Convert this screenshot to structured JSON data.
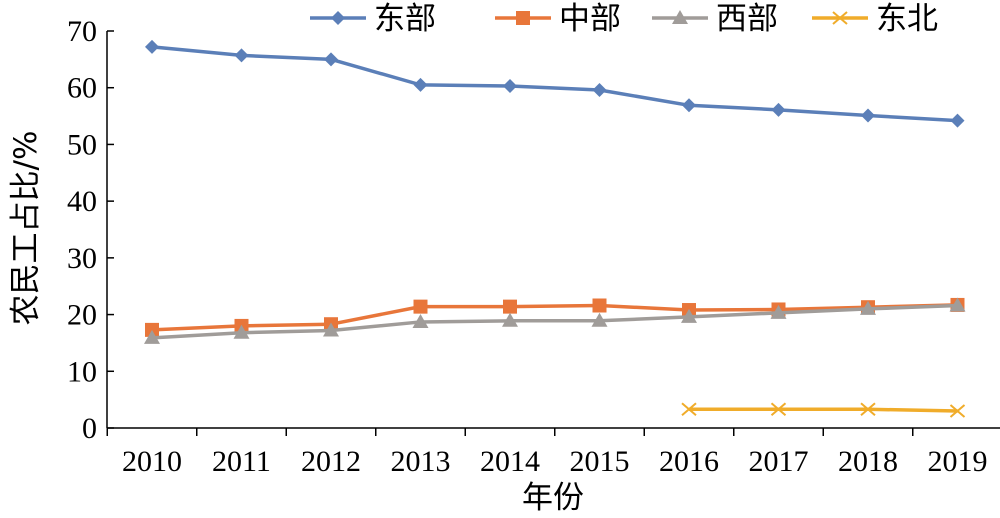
{
  "chart_data": {
    "type": "line",
    "categories": [
      "2010",
      "2011",
      "2012",
      "2013",
      "2014",
      "2015",
      "2016",
      "2017",
      "2018",
      "2019"
    ],
    "series": [
      {
        "name": "东部",
        "color": "#5b7fb8",
        "marker": "diamond",
        "values": [
          67.2,
          65.7,
          65.0,
          60.5,
          60.3,
          59.6,
          56.9,
          56.1,
          55.1,
          54.2
        ]
      },
      {
        "name": "中部",
        "color": "#e8763a",
        "marker": "square",
        "values": [
          17.3,
          18.0,
          18.3,
          21.4,
          21.4,
          21.6,
          20.8,
          20.9,
          21.3,
          21.7
        ]
      },
      {
        "name": "西部",
        "color": "#a09c99",
        "marker": "triangle",
        "values": [
          15.9,
          16.8,
          17.2,
          18.7,
          18.9,
          18.9,
          19.6,
          20.3,
          21.0,
          21.6
        ]
      },
      {
        "name": "东北",
        "color": "#f0ac2a",
        "marker": "x",
        "values": [
          null,
          null,
          null,
          null,
          null,
          null,
          3.3,
          3.3,
          3.3,
          3.0
        ]
      }
    ],
    "xlabel": "年份",
    "ylabel": "农民工占比/%",
    "ylim": [
      0,
      70
    ],
    "yticks": [
      0,
      10,
      20,
      30,
      40,
      50,
      60,
      70
    ],
    "grid": false,
    "legend": "top"
  }
}
